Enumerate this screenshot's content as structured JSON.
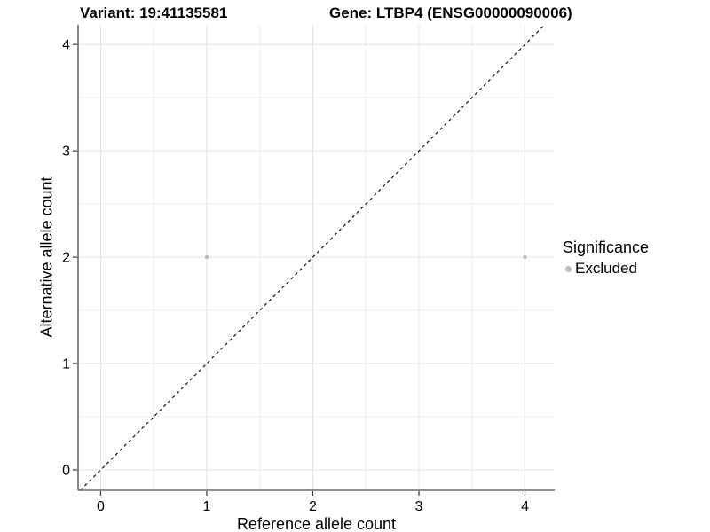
{
  "chart_data": {
    "type": "scatter",
    "titles": {
      "left": "Variant: 19:41135581",
      "right": "Gene: LTBP4 (ENSG00000090006)"
    },
    "xlabel": "Reference allele count",
    "ylabel": "Alternative allele count",
    "xlim": [
      -0.213,
      4.28
    ],
    "ylim": [
      -0.192,
      4.185
    ],
    "x_ticks": [
      0,
      1,
      2,
      3,
      4
    ],
    "y_ticks": [
      0,
      1,
      2,
      3,
      4
    ],
    "minor_grid_step": 0.5,
    "grid": true,
    "points": [
      {
        "x": 1,
        "y": 2,
        "significance": "Excluded"
      },
      {
        "x": 4,
        "y": 2,
        "significance": "Excluded"
      }
    ],
    "identity_line": {
      "style": "dashed",
      "equation": "y = x"
    },
    "legend": {
      "title": "Significance",
      "position": "right",
      "items": [
        {
          "label": "Excluded",
          "color": "#bcbcbc"
        }
      ]
    },
    "colors": {
      "point": "#bcbcbc",
      "grid_major": "#e3e3e3",
      "grid_minor": "#f1f1f1",
      "axis_line": "#6b6b6b",
      "tick_mark": "#333333",
      "identity_line": "#000000",
      "background": "#ffffff"
    }
  }
}
